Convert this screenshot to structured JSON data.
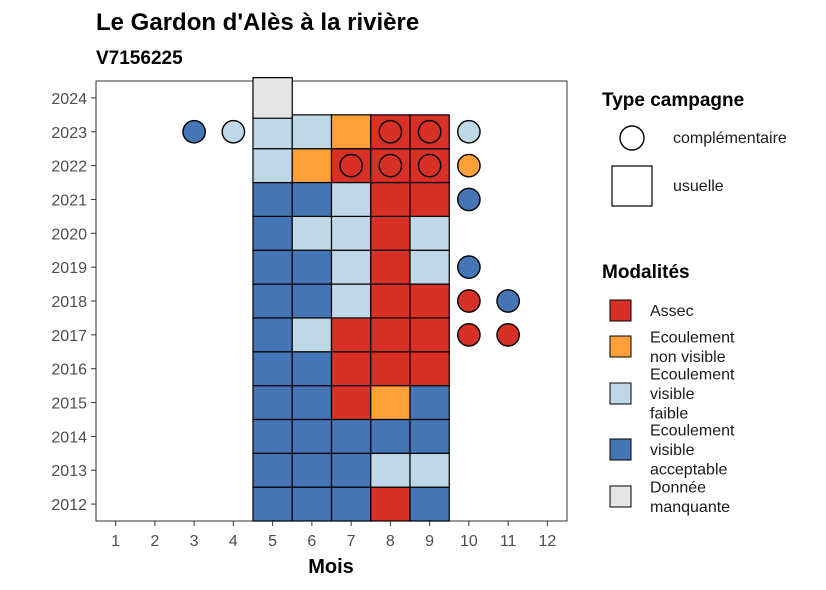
{
  "chart_data": {
    "type": "heatmap",
    "title": "Le Gardon d'Alès à la rivière",
    "subtitle": "V7156225",
    "xlabel": "Mois",
    "ylabel": "",
    "x_ticks": [
      1,
      2,
      3,
      4,
      5,
      6,
      7,
      8,
      9,
      10,
      11,
      12
    ],
    "y_ticks": [
      2012,
      2013,
      2014,
      2015,
      2016,
      2017,
      2018,
      2019,
      2020,
      2021,
      2022,
      2023,
      2024
    ],
    "xlim": [
      0.5,
      12.5
    ],
    "ylim": [
      2011.5,
      2024.5
    ],
    "grid": false,
    "legend_position": "right",
    "shape_legend": {
      "title": "Type campagne",
      "items": [
        {
          "label": "complémentaire",
          "shape": "circle"
        },
        {
          "label": "usuelle",
          "shape": "square"
        }
      ]
    },
    "color_legend": {
      "title": "Modalités",
      "items": [
        {
          "key": "assec",
          "label_lines": [
            "Assec"
          ],
          "color": "#D73027"
        },
        {
          "key": "nonvisible",
          "label_lines": [
            "Ecoulement",
            "non visible"
          ],
          "color": "#FDA03A"
        },
        {
          "key": "faible",
          "label_lines": [
            "Ecoulement",
            "visible",
            "faible"
          ],
          "color": "#BFD8E8"
        },
        {
          "key": "acceptable",
          "label_lines": [
            "Ecoulement",
            "visible",
            "acceptable"
          ],
          "color": "#4575B4"
        },
        {
          "key": "manquante",
          "label_lines": [
            "Donnée",
            "manquante"
          ],
          "color": "#E5E5E5"
        }
      ]
    },
    "points": [
      {
        "year": 2012,
        "month": 5,
        "type": "usuelle",
        "value": "acceptable"
      },
      {
        "year": 2012,
        "month": 6,
        "type": "usuelle",
        "value": "acceptable"
      },
      {
        "year": 2012,
        "month": 7,
        "type": "usuelle",
        "value": "acceptable"
      },
      {
        "year": 2012,
        "month": 8,
        "type": "usuelle",
        "value": "assec"
      },
      {
        "year": 2012,
        "month": 9,
        "type": "usuelle",
        "value": "acceptable"
      },
      {
        "year": 2013,
        "month": 5,
        "type": "usuelle",
        "value": "acceptable"
      },
      {
        "year": 2013,
        "month": 6,
        "type": "usuelle",
        "value": "acceptable"
      },
      {
        "year": 2013,
        "month": 7,
        "type": "usuelle",
        "value": "acceptable"
      },
      {
        "year": 2013,
        "month": 8,
        "type": "usuelle",
        "value": "faible"
      },
      {
        "year": 2013,
        "month": 9,
        "type": "usuelle",
        "value": "faible"
      },
      {
        "year": 2014,
        "month": 5,
        "type": "usuelle",
        "value": "acceptable"
      },
      {
        "year": 2014,
        "month": 6,
        "type": "usuelle",
        "value": "acceptable"
      },
      {
        "year": 2014,
        "month": 7,
        "type": "usuelle",
        "value": "acceptable"
      },
      {
        "year": 2014,
        "month": 8,
        "type": "usuelle",
        "value": "acceptable"
      },
      {
        "year": 2014,
        "month": 9,
        "type": "usuelle",
        "value": "acceptable"
      },
      {
        "year": 2015,
        "month": 5,
        "type": "usuelle",
        "value": "acceptable"
      },
      {
        "year": 2015,
        "month": 6,
        "type": "usuelle",
        "value": "acceptable"
      },
      {
        "year": 2015,
        "month": 7,
        "type": "usuelle",
        "value": "assec"
      },
      {
        "year": 2015,
        "month": 8,
        "type": "usuelle",
        "value": "nonvisible"
      },
      {
        "year": 2015,
        "month": 9,
        "type": "usuelle",
        "value": "acceptable"
      },
      {
        "year": 2016,
        "month": 5,
        "type": "usuelle",
        "value": "acceptable"
      },
      {
        "year": 2016,
        "month": 6,
        "type": "usuelle",
        "value": "acceptable"
      },
      {
        "year": 2016,
        "month": 7,
        "type": "usuelle",
        "value": "assec"
      },
      {
        "year": 2016,
        "month": 8,
        "type": "usuelle",
        "value": "assec"
      },
      {
        "year": 2016,
        "month": 9,
        "type": "usuelle",
        "value": "assec"
      },
      {
        "year": 2017,
        "month": 5,
        "type": "usuelle",
        "value": "acceptable"
      },
      {
        "year": 2017,
        "month": 6,
        "type": "usuelle",
        "value": "faible"
      },
      {
        "year": 2017,
        "month": 7,
        "type": "usuelle",
        "value": "assec"
      },
      {
        "year": 2017,
        "month": 8,
        "type": "usuelle",
        "value": "assec"
      },
      {
        "year": 2017,
        "month": 9,
        "type": "usuelle",
        "value": "assec"
      },
      {
        "year": 2017,
        "month": 10,
        "type": "complementaire",
        "value": "assec"
      },
      {
        "year": 2017,
        "month": 11,
        "type": "complementaire",
        "value": "assec"
      },
      {
        "year": 2018,
        "month": 5,
        "type": "usuelle",
        "value": "acceptable"
      },
      {
        "year": 2018,
        "month": 6,
        "type": "usuelle",
        "value": "acceptable"
      },
      {
        "year": 2018,
        "month": 7,
        "type": "usuelle",
        "value": "faible"
      },
      {
        "year": 2018,
        "month": 8,
        "type": "usuelle",
        "value": "assec"
      },
      {
        "year": 2018,
        "month": 9,
        "type": "usuelle",
        "value": "assec"
      },
      {
        "year": 2018,
        "month": 10,
        "type": "complementaire",
        "value": "assec"
      },
      {
        "year": 2018,
        "month": 11,
        "type": "complementaire",
        "value": "acceptable"
      },
      {
        "year": 2019,
        "month": 5,
        "type": "usuelle",
        "value": "acceptable"
      },
      {
        "year": 2019,
        "month": 6,
        "type": "usuelle",
        "value": "acceptable"
      },
      {
        "year": 2019,
        "month": 7,
        "type": "usuelle",
        "value": "faible"
      },
      {
        "year": 2019,
        "month": 8,
        "type": "usuelle",
        "value": "assec"
      },
      {
        "year": 2019,
        "month": 9,
        "type": "usuelle",
        "value": "faible"
      },
      {
        "year": 2019,
        "month": 10,
        "type": "complementaire",
        "value": "acceptable"
      },
      {
        "year": 2020,
        "month": 5,
        "type": "usuelle",
        "value": "acceptable"
      },
      {
        "year": 2020,
        "month": 6,
        "type": "usuelle",
        "value": "faible"
      },
      {
        "year": 2020,
        "month": 7,
        "type": "usuelle",
        "value": "faible"
      },
      {
        "year": 2020,
        "month": 8,
        "type": "usuelle",
        "value": "assec"
      },
      {
        "year": 2020,
        "month": 9,
        "type": "usuelle",
        "value": "faible"
      },
      {
        "year": 2021,
        "month": 5,
        "type": "usuelle",
        "value": "acceptable"
      },
      {
        "year": 2021,
        "month": 6,
        "type": "usuelle",
        "value": "acceptable"
      },
      {
        "year": 2021,
        "month": 7,
        "type": "usuelle",
        "value": "faible"
      },
      {
        "year": 2021,
        "month": 8,
        "type": "usuelle",
        "value": "assec"
      },
      {
        "year": 2021,
        "month": 9,
        "type": "usuelle",
        "value": "assec"
      },
      {
        "year": 2021,
        "month": 10,
        "type": "complementaire",
        "value": "acceptable"
      },
      {
        "year": 2022,
        "month": 5,
        "type": "usuelle",
        "value": "faible"
      },
      {
        "year": 2022,
        "month": 6,
        "type": "usuelle",
        "value": "nonvisible"
      },
      {
        "year": 2022,
        "month": 7,
        "type": "usuelle",
        "value": "assec"
      },
      {
        "year": 2022,
        "month": 8,
        "type": "usuelle",
        "value": "assec"
      },
      {
        "year": 2022,
        "month": 9,
        "type": "usuelle",
        "value": "assec"
      },
      {
        "year": 2022,
        "month": 7,
        "type": "complementaire",
        "value": "assec"
      },
      {
        "year": 2022,
        "month": 8,
        "type": "complementaire",
        "value": "assec"
      },
      {
        "year": 2022,
        "month": 9,
        "type": "complementaire",
        "value": "assec"
      },
      {
        "year": 2022,
        "month": 10,
        "type": "complementaire",
        "value": "nonvisible"
      },
      {
        "year": 2023,
        "month": 5,
        "type": "usuelle",
        "value": "faible"
      },
      {
        "year": 2023,
        "month": 6,
        "type": "usuelle",
        "value": "faible"
      },
      {
        "year": 2023,
        "month": 7,
        "type": "usuelle",
        "value": "nonvisible"
      },
      {
        "year": 2023,
        "month": 8,
        "type": "usuelle",
        "value": "assec"
      },
      {
        "year": 2023,
        "month": 9,
        "type": "usuelle",
        "value": "assec"
      },
      {
        "year": 2023,
        "month": 3,
        "type": "complementaire",
        "value": "acceptable"
      },
      {
        "year": 2023,
        "month": 4,
        "type": "complementaire",
        "value": "faible"
      },
      {
        "year": 2023,
        "month": 8,
        "type": "complementaire",
        "value": "assec"
      },
      {
        "year": 2023,
        "month": 9,
        "type": "complementaire",
        "value": "assec"
      },
      {
        "year": 2023,
        "month": 10,
        "type": "complementaire",
        "value": "faible"
      },
      {
        "year": 2024,
        "month": 5,
        "type": "usuelle",
        "value": "manquante"
      }
    ]
  }
}
